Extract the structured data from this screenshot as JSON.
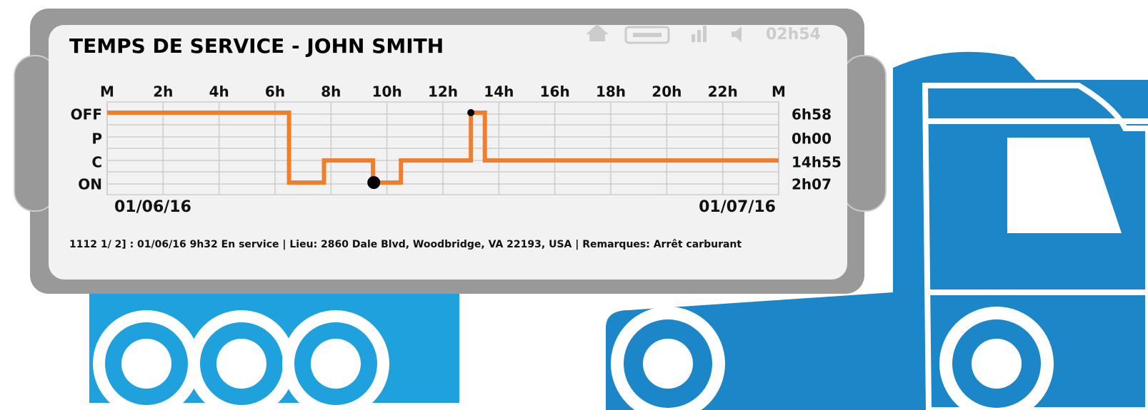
{
  "header": {
    "title": "TEMPS DE SERVICE - JOHN SMITH",
    "clock": "02h54"
  },
  "chart_data": {
    "type": "step",
    "xlim": [
      0,
      24
    ],
    "xticks": [
      {
        "value": 0,
        "label": "M"
      },
      {
        "value": 2,
        "label": "2h"
      },
      {
        "value": 4,
        "label": "4h"
      },
      {
        "value": 6,
        "label": "6h"
      },
      {
        "value": 8,
        "label": "8h"
      },
      {
        "value": 10,
        "label": "10h"
      },
      {
        "value": 12,
        "label": "12h"
      },
      {
        "value": 14,
        "label": "14h"
      },
      {
        "value": 16,
        "label": "16h"
      },
      {
        "value": 18,
        "label": "18h"
      },
      {
        "value": 20,
        "label": "20h"
      },
      {
        "value": 22,
        "label": "22h"
      },
      {
        "value": 24,
        "label": "M"
      }
    ],
    "categories": [
      "OFF",
      "P",
      "C",
      "ON"
    ],
    "totals": [
      "6h58",
      "0h00",
      "14h55",
      "2h07"
    ],
    "x": [
      0,
      6.5,
      7.75,
      9.5,
      10.5,
      13,
      13.5,
      24
    ],
    "values": [
      "OFF",
      "ON",
      "C",
      "ON",
      "C",
      "OFF",
      "C",
      "C"
    ],
    "color": "#f07f2d",
    "markers": [
      {
        "x": 9.53,
        "value": "ON"
      },
      {
        "x": 13,
        "value": "OFF"
      }
    ],
    "grid": true,
    "start_date": "01/06/16",
    "end_date": "01/07/16"
  },
  "footer": "1112 1/ 2] : 01/06/16 9h32 En service | Lieu: 2860 Dale Blvd, Woodbridge, VA 22193, USA | Remarques: Arrêt carburant"
}
